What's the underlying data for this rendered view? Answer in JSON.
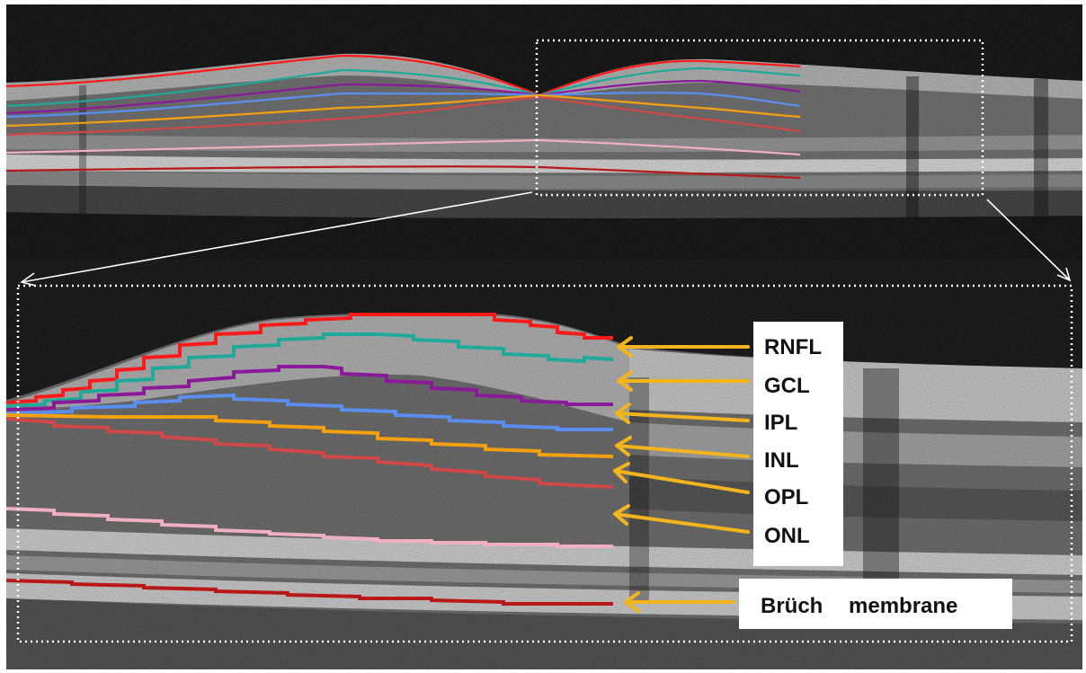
{
  "labels": [
    {
      "id": "rnfl",
      "text": "RNFL"
    },
    {
      "id": "gcl",
      "text": "GCL"
    },
    {
      "id": "ipl",
      "text": "IPL"
    },
    {
      "id": "inl",
      "text": "INL"
    },
    {
      "id": "opl",
      "text": "OPL"
    },
    {
      "id": "onl",
      "text": "ONL"
    },
    {
      "id": "bruch-1",
      "text": "Brüch"
    },
    {
      "id": "bruch-2",
      "text": "membrane"
    }
  ],
  "layer_colors": {
    "rnfl": "#ff1a1a",
    "gcl": "#20a898",
    "ipl": "#8a1a9a",
    "inl": "#5a8ff0",
    "opl": "#f5a00f",
    "onl": "#d04848",
    "elm": "#f0b0c0",
    "bruch": "#b81818",
    "arrow": "#f4b41e"
  }
}
